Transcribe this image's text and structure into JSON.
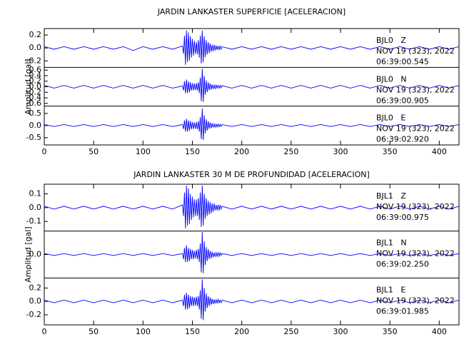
{
  "chart_data": [
    {
      "type": "line",
      "title": "JARDIN LANKASTER SUPERFICIE [ACELERACION]",
      "ylabel": "Amplitud [gal]",
      "xlim": [
        0,
        420
      ],
      "xticks": [
        0,
        50,
        100,
        150,
        200,
        250,
        300,
        350,
        400
      ],
      "x": [
        0,
        10,
        20,
        30,
        40,
        50,
        60,
        70,
        80,
        90,
        100,
        110,
        120,
        130,
        140,
        141,
        142,
        143,
        144,
        145,
        146,
        147,
        148,
        149,
        150,
        151,
        152,
        153,
        154,
        155,
        156,
        157,
        158,
        159,
        160,
        161,
        162,
        163,
        164,
        165,
        166,
        167,
        168,
        169,
        170,
        171,
        172,
        173,
        174,
        175,
        176,
        177,
        178,
        179,
        180,
        190,
        200,
        210,
        220,
        230,
        240,
        250,
        260,
        270,
        280,
        290,
        300,
        310,
        320,
        330,
        340,
        350,
        360,
        370,
        380,
        390,
        400,
        410,
        420
      ],
      "series": [
        {
          "name": "BJL0   Z",
          "annotation": [
            "NOV 19 (323), 2022",
            "06:39:00.545"
          ],
          "color": "#0000ff",
          "ylim": [
            -0.3,
            0.3
          ],
          "yticks": [
            0.2,
            {
              "value": 0,
              "label": "0.0"
            },
            -0.2
          ],
          "values": [
            0.02,
            -0.02,
            0.02,
            -0.02,
            0.02,
            -0.02,
            0.02,
            -0.02,
            0.02,
            -0.04,
            0.02,
            -0.02,
            0.02,
            -0.02,
            0.03,
            -0.09,
            0.19,
            -0.26,
            0.27,
            -0.22,
            0.24,
            -0.2,
            0.18,
            -0.15,
            0.14,
            -0.12,
            0.11,
            -0.09,
            0.09,
            -0.1,
            0.12,
            -0.15,
            0.19,
            -0.24,
            0.27,
            -0.22,
            0.18,
            -0.14,
            0.12,
            -0.1,
            0.09,
            -0.08,
            0.07,
            -0.06,
            0.05,
            -0.05,
            0.05,
            -0.04,
            0.04,
            -0.03,
            0.03,
            -0.03,
            0.03,
            -0.02,
            0.02,
            -0.02,
            0.02,
            -0.02,
            0.02,
            -0.02,
            0.02,
            -0.02,
            0.02,
            -0.02,
            0.02,
            -0.02,
            0.02,
            -0.02,
            0.02,
            -0.02,
            0.02,
            -0.02,
            0.02,
            -0.02,
            0.02,
            -0.02,
            0.02,
            -0.02,
            0.02
          ]
        },
        {
          "name": "BJL0   N",
          "annotation": [
            "NOV 19 (323), 2022",
            "06:39:00.905"
          ],
          "color": "#0000ff",
          "ylim": [
            -0.7,
            0.7
          ],
          "yticks": [
            0.6,
            0.4,
            0.2,
            {
              "value": 0,
              "label": "0.0"
            },
            -0.2,
            -0.4,
            -0.6
          ],
          "values": [
            0.05,
            -0.05,
            0.05,
            -0.05,
            0.05,
            -0.05,
            0.05,
            -0.05,
            0.05,
            -0.05,
            0.05,
            -0.05,
            0.05,
            -0.05,
            0.03,
            -0.13,
            0.2,
            -0.23,
            0.26,
            -0.23,
            0.2,
            -0.2,
            0.16,
            -0.14,
            0.13,
            -0.13,
            0.12,
            -0.12,
            0.13,
            -0.14,
            0.16,
            -0.23,
            0.33,
            -0.52,
            0.65,
            -0.55,
            0.39,
            -0.29,
            0.23,
            -0.2,
            0.16,
            -0.13,
            0.12,
            -0.1,
            0.08,
            -0.08,
            0.07,
            -0.07,
            0.06,
            -0.05,
            0.05,
            -0.05,
            0.05,
            -0.04,
            0.04,
            -0.05,
            0.05,
            -0.05,
            0.05,
            -0.05,
            0.05,
            -0.05,
            0.05,
            -0.05,
            0.05,
            -0.05,
            0.05,
            -0.05,
            0.05,
            -0.05,
            0.05,
            -0.05,
            0.05,
            -0.05,
            0.05,
            -0.05,
            0.05,
            -0.05,
            0.05
          ]
        },
        {
          "name": "BJL0   E",
          "annotation": [
            "NOV 19 (323), 2022",
            "06:39:02.920"
          ],
          "color": "#0000ff",
          "ylim": [
            -0.8,
            0.8
          ],
          "yticks": [
            0.5,
            {
              "value": 0,
              "label": "0.0"
            },
            -0.5
          ],
          "values": [
            0.04,
            -0.04,
            0.04,
            -0.04,
            0.04,
            -0.04,
            0.04,
            -0.04,
            0.04,
            -0.04,
            0.04,
            -0.04,
            0.04,
            -0.04,
            0.04,
            -0.14,
            0.21,
            -0.25,
            0.28,
            -0.25,
            0.21,
            -0.21,
            0.18,
            -0.15,
            0.14,
            -0.14,
            0.13,
            -0.13,
            0.14,
            -0.15,
            0.18,
            -0.25,
            0.35,
            -0.56,
            0.7,
            -0.6,
            0.42,
            -0.32,
            0.25,
            -0.21,
            0.18,
            -0.14,
            0.13,
            -0.11,
            0.09,
            -0.08,
            0.07,
            -0.07,
            0.06,
            -0.06,
            0.06,
            -0.05,
            0.05,
            -0.04,
            0.04,
            -0.04,
            0.04,
            -0.04,
            0.04,
            -0.04,
            0.04,
            -0.04,
            0.04,
            -0.04,
            0.04,
            -0.04,
            0.04,
            -0.04,
            0.04,
            -0.04,
            0.04,
            -0.04,
            0.04,
            -0.04,
            0.04,
            -0.04,
            0.04,
            -0.04,
            0.04
          ]
        }
      ]
    },
    {
      "type": "line",
      "title": "JARDIN LANKASTER 30 M DE PROFUNDIDAD [ACELERACION]",
      "ylabel": "Amplitud [gal]",
      "xlim": [
        0,
        420
      ],
      "xticks": [
        0,
        50,
        100,
        150,
        200,
        250,
        300,
        350,
        400
      ],
      "x": [
        0,
        10,
        20,
        30,
        40,
        50,
        60,
        70,
        80,
        90,
        100,
        110,
        120,
        130,
        140,
        141,
        142,
        143,
        144,
        145,
        146,
        147,
        148,
        149,
        150,
        151,
        152,
        153,
        154,
        155,
        156,
        157,
        158,
        159,
        160,
        161,
        162,
        163,
        164,
        165,
        166,
        167,
        168,
        169,
        170,
        171,
        172,
        173,
        174,
        175,
        176,
        177,
        178,
        179,
        180,
        190,
        200,
        210,
        220,
        230,
        240,
        250,
        260,
        270,
        280,
        290,
        300,
        310,
        320,
        330,
        340,
        350,
        360,
        370,
        380,
        390,
        400,
        410,
        420
      ],
      "series": [
        {
          "name": "BJL1   Z",
          "annotation": [
            "NOV 19 (323), 2022",
            "06:39:00.975"
          ],
          "color": "#0000ff",
          "ylim": [
            -0.17,
            0.17
          ],
          "yticks": [
            0.1,
            {
              "value": 0,
              "label": "0.0"
            },
            -0.1
          ],
          "values": [
            0.01,
            -0.01,
            0.01,
            -0.01,
            0.01,
            -0.01,
            0.01,
            -0.01,
            0.01,
            -0.01,
            0.01,
            -0.01,
            0.01,
            -0.01,
            0.02,
            -0.06,
            0.11,
            -0.15,
            0.16,
            -0.13,
            0.14,
            -0.12,
            0.1,
            -0.09,
            0.08,
            -0.07,
            0.06,
            -0.06,
            0.06,
            -0.06,
            0.07,
            -0.09,
            0.11,
            -0.14,
            0.16,
            -0.13,
            0.1,
            -0.08,
            0.07,
            -0.06,
            0.05,
            -0.05,
            0.04,
            -0.04,
            0.03,
            -0.03,
            0.03,
            -0.02,
            0.02,
            -0.02,
            0.02,
            -0.02,
            0.02,
            -0.01,
            0.01,
            -0.01,
            0.01,
            -0.01,
            0.01,
            -0.01,
            0.01,
            -0.01,
            0.01,
            -0.01,
            0.01,
            -0.01,
            0.01,
            -0.01,
            0.01,
            -0.01,
            0.01,
            -0.01,
            0.01,
            -0.01,
            0.01,
            -0.01,
            0.01,
            -0.01,
            0.01
          ]
        },
        {
          "name": "BJL1   N",
          "annotation": [
            "NOV 19 (323), 2022",
            "06:39:02.250"
          ],
          "color": "#0000ff",
          "ylim": [
            -0.25,
            0.25
          ],
          "yticks": [
            {
              "value": 0,
              "label": "0.0"
            }
          ],
          "values": [
            0.01,
            -0.01,
            0.01,
            -0.01,
            0.01,
            -0.01,
            0.01,
            -0.01,
            0.01,
            -0.01,
            0.01,
            -0.01,
            0.01,
            -0.01,
            0.01,
            -0.05,
            0.07,
            -0.08,
            0.1,
            -0.08,
            0.07,
            -0.07,
            0.06,
            -0.05,
            0.05,
            -0.05,
            0.04,
            -0.04,
            0.05,
            -0.05,
            0.06,
            -0.08,
            0.12,
            -0.19,
            0.24,
            -0.2,
            0.14,
            -0.11,
            0.08,
            -0.07,
            0.06,
            -0.05,
            0.04,
            -0.04,
            0.03,
            -0.03,
            0.02,
            -0.02,
            0.02,
            -0.02,
            0.02,
            -0.02,
            0.02,
            -0.01,
            0.01,
            -0.01,
            0.01,
            -0.01,
            0.01,
            -0.01,
            0.01,
            -0.01,
            0.01,
            -0.01,
            0.01,
            -0.01,
            0.01,
            -0.01,
            0.01,
            -0.01,
            0.01,
            -0.01,
            0.01,
            -0.01,
            0.01,
            -0.01,
            0.01,
            -0.01,
            0.01
          ]
        },
        {
          "name": "BJL1   E",
          "annotation": [
            "NOV 19 (323), 2022",
            "06:39:01.985"
          ],
          "color": "#0000ff",
          "ylim": [
            -0.35,
            0.35
          ],
          "yticks": [
            0.2,
            {
              "value": 0,
              "label": "0.0"
            },
            -0.2
          ],
          "values": [
            0.02,
            -0.02,
            0.02,
            -0.02,
            0.02,
            -0.02,
            0.02,
            -0.02,
            0.02,
            -0.02,
            0.02,
            -0.02,
            0.02,
            -0.02,
            0.02,
            -0.07,
            0.1,
            -0.12,
            0.13,
            -0.12,
            0.1,
            -0.1,
            0.08,
            -0.07,
            0.07,
            -0.07,
            0.06,
            -0.06,
            0.07,
            -0.07,
            0.08,
            -0.12,
            0.17,
            -0.26,
            0.33,
            -0.28,
            0.2,
            -0.15,
            0.12,
            -0.1,
            0.08,
            -0.07,
            0.06,
            -0.05,
            0.04,
            -0.04,
            0.03,
            -0.03,
            0.03,
            -0.03,
            0.03,
            -0.02,
            0.02,
            -0.02,
            0.02,
            -0.02,
            0.02,
            -0.02,
            0.02,
            -0.02,
            0.02,
            -0.02,
            0.02,
            -0.02,
            0.02,
            -0.02,
            0.02,
            -0.02,
            0.02,
            -0.02,
            0.02,
            -0.02,
            0.02,
            -0.02,
            0.02,
            -0.02,
            0.02,
            -0.02,
            0.02
          ]
        }
      ]
    }
  ]
}
